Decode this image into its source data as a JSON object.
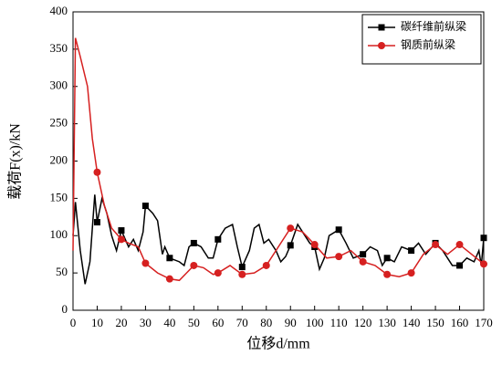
{
  "chart_data": {
    "type": "line",
    "xlabel": "位移d/mm",
    "ylabel": "载荷F(x)/kN",
    "xlim": [
      0,
      170
    ],
    "xticks": [
      0,
      10,
      20,
      30,
      40,
      50,
      60,
      70,
      80,
      90,
      100,
      110,
      120,
      130,
      140,
      150,
      160,
      170
    ],
    "ylim": [
      0,
      400
    ],
    "yticks": [
      0,
      50,
      100,
      150,
      200,
      250,
      300,
      350,
      400
    ],
    "legend": "upper right",
    "grid": false,
    "series": [
      {
        "name": "碳纤维前纵梁",
        "color": "#000000",
        "marker": "square",
        "x": [
          0,
          1,
          3,
          5,
          7,
          9,
          10,
          12,
          14,
          16,
          18,
          20,
          23,
          25,
          27,
          29,
          30,
          33,
          35,
          37,
          38,
          40,
          44,
          46,
          48,
          50,
          53,
          56,
          58,
          60,
          63,
          66,
          68,
          70,
          73,
          75,
          77,
          79,
          81,
          84,
          86,
          88,
          90,
          93,
          95,
          98,
          100,
          102,
          104,
          106,
          110,
          113,
          116,
          120,
          123,
          126,
          128,
          130,
          133,
          136,
          140,
          143,
          146,
          150,
          153,
          157,
          160,
          163,
          166,
          168,
          169,
          170
        ],
        "values": [
          100,
          145,
          80,
          35,
          65,
          155,
          118,
          150,
          130,
          100,
          80,
          107,
          85,
          95,
          80,
          105,
          140,
          130,
          120,
          75,
          85,
          70,
          65,
          60,
          85,
          90,
          85,
          70,
          70,
          95,
          110,
          115,
          85,
          58,
          80,
          110,
          115,
          90,
          95,
          80,
          65,
          72,
          87,
          115,
          105,
          90,
          85,
          55,
          70,
          100,
          108,
          90,
          70,
          75,
          85,
          80,
          60,
          70,
          65,
          85,
          80,
          90,
          75,
          90,
          80,
          60,
          60,
          70,
          65,
          80,
          60,
          97
        ]
      },
      {
        "name": "钢质前纵梁",
        "color": "#d62020",
        "marker": "circle",
        "x": [
          0,
          1,
          3,
          6,
          8,
          10,
          13,
          16,
          20,
          23,
          27,
          30,
          35,
          40,
          44,
          47,
          50,
          54,
          58,
          60,
          65,
          70,
          75,
          80,
          85,
          90,
          95,
          100,
          105,
          110,
          115,
          120,
          125,
          130,
          135,
          140,
          145,
          150,
          155,
          160,
          165,
          170
        ],
        "values": [
          80,
          365,
          340,
          300,
          230,
          185,
          140,
          110,
          95,
          90,
          85,
          63,
          50,
          42,
          40,
          50,
          60,
          57,
          48,
          50,
          60,
          48,
          50,
          60,
          85,
          110,
          105,
          88,
          70,
          72,
          80,
          65,
          60,
          48,
          45,
          50,
          75,
          88,
          75,
          88,
          75,
          62
        ]
      }
    ]
  }
}
